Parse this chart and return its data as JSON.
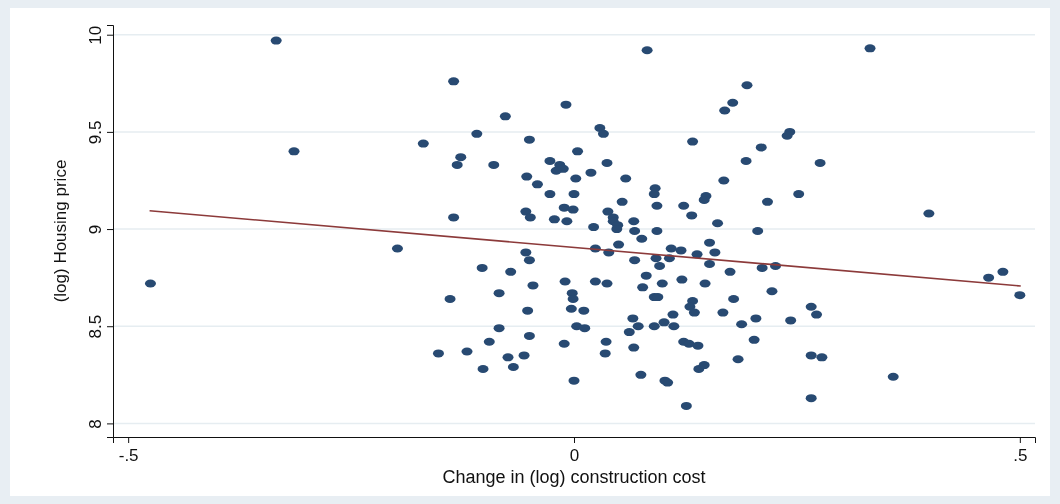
{
  "chart_data": {
    "type": "scatter",
    "xlabel": "Change in (log) construction cost",
    "ylabel": "(log) Housing price",
    "xlim": [
      -0.517,
      0.517
    ],
    "ylim": [
      7.93,
      10.05
    ],
    "xticks": [
      {
        "value": -0.5,
        "label": "-.5"
      },
      0,
      {
        "value": 0.5,
        "label": ".5"
      }
    ],
    "yticks": [
      10,
      9.5,
      9,
      8.5,
      8
    ],
    "grid": "y",
    "series": [
      {
        "color": "#284a72",
        "marker": "circle",
        "x": [
          -0.475,
          -0.334,
          -0.314,
          -0.198,
          -0.169,
          -0.152,
          -0.135,
          -0.009,
          -0.077,
          -0.109,
          0.029,
          0.033,
          -0.05,
          0.004,
          -0.127,
          -0.131,
          -0.09,
          -0.027,
          -0.016,
          -0.012,
          -0.02,
          0.019,
          0.037,
          -0.053,
          0.002,
          -0.041,
          -0.027,
          0.0,
          -0.054,
          -0.011,
          -0.001,
          -0.049,
          -0.135,
          -0.022,
          -0.008,
          0.022,
          0.038,
          0.024,
          -0.054,
          -0.05,
          -0.103,
          -0.071,
          -0.01,
          0.024,
          0.037,
          -0.046,
          -0.084,
          -0.002,
          -0.001,
          -0.139,
          -0.052,
          -0.003,
          0.011,
          0.003,
          0.012,
          -0.084,
          -0.05,
          -0.095,
          -0.011,
          0.036,
          -0.12,
          0.035,
          -0.074,
          -0.056,
          -0.102,
          -0.068,
          0.0,
          0.194,
          0.178,
          0.169,
          0.133,
          0.21,
          0.193,
          0.058,
          0.168,
          0.091,
          0.09,
          0.148,
          0.146,
          0.054,
          0.217,
          0.093,
          0.123,
          0.132,
          0.044,
          0.044,
          0.049,
          0.048,
          0.067,
          0.068,
          0.093,
          0.161,
          0.206,
          0.076,
          0.05,
          0.152,
          0.109,
          0.12,
          0.039,
          0.158,
          0.138,
          0.068,
          0.092,
          0.107,
          0.152,
          0.096,
          0.175,
          0.211,
          0.226,
          0.081,
          0.099,
          0.121,
          0.147,
          0.077,
          0.222,
          0.09,
          0.094,
          0.133,
          0.179,
          0.13,
          0.135,
          0.111,
          0.167,
          0.066,
          0.204,
          0.072,
          0.09,
          0.101,
          0.112,
          0.188,
          0.062,
          0.067,
          0.123,
          0.129,
          0.139,
          0.202,
          0.184,
          0.14,
          0.146,
          0.075,
          0.102,
          0.105,
          0.126,
          0.082,
          0.332,
          0.242,
          0.239,
          0.276,
          0.252,
          0.398,
          0.465,
          0.481,
          0.5,
          0.266,
          0.272,
          0.243,
          0.266,
          0.278,
          0.358,
          0.266
        ],
        "values": [
          8.72,
          9.97,
          9.4,
          8.9,
          9.44,
          8.36,
          9.76,
          9.64,
          9.58,
          9.49,
          9.52,
          9.49,
          9.46,
          9.4,
          9.37,
          9.33,
          9.33,
          9.35,
          9.33,
          9.31,
          9.3,
          9.29,
          9.34,
          9.27,
          9.26,
          9.23,
          9.18,
          9.18,
          9.09,
          9.11,
          9.1,
          9.06,
          9.06,
          9.05,
          9.04,
          9.01,
          9.09,
          8.9,
          8.88,
          8.84,
          8.8,
          8.78,
          8.73,
          8.73,
          8.72,
          8.71,
          8.67,
          8.67,
          8.64,
          8.64,
          8.58,
          8.59,
          8.58,
          8.5,
          8.49,
          8.49,
          8.45,
          8.42,
          8.41,
          8.42,
          8.37,
          8.36,
          8.34,
          8.35,
          8.28,
          8.29,
          8.22,
          9.74,
          9.65,
          9.61,
          9.45,
          9.42,
          9.35,
          9.26,
          9.25,
          9.21,
          9.18,
          9.17,
          9.15,
          9.14,
          9.14,
          9.12,
          9.12,
          9.07,
          9.06,
          9.04,
          9.02,
          9.0,
          9.04,
          8.99,
          8.99,
          9.03,
          8.99,
          8.95,
          8.92,
          8.93,
          8.9,
          8.89,
          8.88,
          8.88,
          8.87,
          8.84,
          8.85,
          8.85,
          8.82,
          8.81,
          8.78,
          8.8,
          8.81,
          8.76,
          8.72,
          8.74,
          8.72,
          8.7,
          8.68,
          8.65,
          8.65,
          8.63,
          8.64,
          8.6,
          8.57,
          8.56,
          8.57,
          8.54,
          8.54,
          8.5,
          8.5,
          8.52,
          8.5,
          8.51,
          8.47,
          8.39,
          8.42,
          8.41,
          8.4,
          8.43,
          8.33,
          8.28,
          8.3,
          8.25,
          8.22,
          8.21,
          8.09,
          9.92,
          9.93,
          9.5,
          9.48,
          9.34,
          9.18,
          9.08,
          8.75,
          8.78,
          8.66,
          8.6,
          8.56,
          8.53,
          8.35,
          8.34,
          8.24,
          8.13
        ]
      },
      {
        "type": "line",
        "color": "#8c3a3a",
        "x": [
          -0.476,
          0.501
        ],
        "values": [
          9.094,
          8.707
        ]
      }
    ]
  }
}
